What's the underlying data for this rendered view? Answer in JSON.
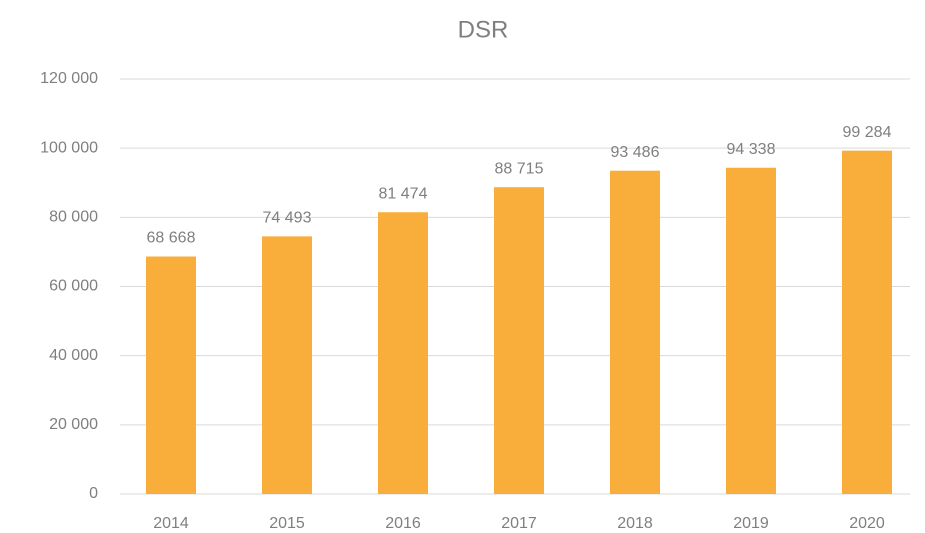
{
  "chart_data": {
    "type": "bar",
    "title": "DSR",
    "categories": [
      "2014",
      "2015",
      "2016",
      "2017",
      "2018",
      "2019",
      "2020"
    ],
    "values": [
      68668,
      74493,
      81474,
      88715,
      93486,
      94338,
      99284
    ],
    "value_labels": [
      "68 668",
      "74 493",
      "81 474",
      "88 715",
      "93 486",
      "94 338",
      "99 284"
    ],
    "color": "#f9ae3b",
    "ylim": [
      0,
      120000
    ],
    "yticks": [
      0,
      {
        "value": 20000,
        "label": "20 000"
      },
      {
        "value": 40000,
        "label": "40 000"
      },
      {
        "value": 60000,
        "label": "60 000"
      },
      {
        "value": 80000,
        "label": "80 000"
      },
      {
        "value": 100000,
        "label": "100 000"
      },
      {
        "value": 120000,
        "label": "120 000"
      }
    ],
    "grid": true
  }
}
